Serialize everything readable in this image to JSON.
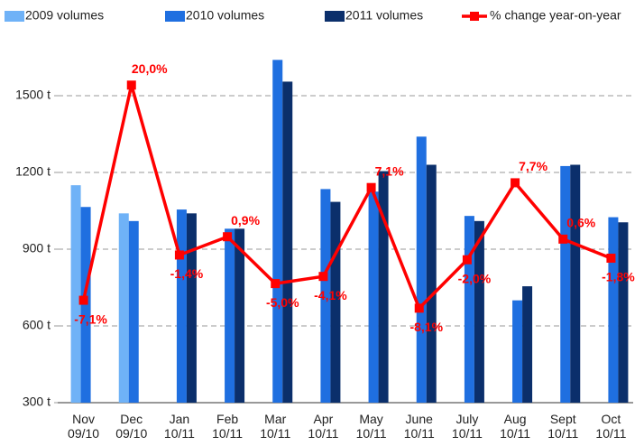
{
  "chart_data": {
    "type": "bar_line",
    "categories": [
      "Nov\n09/10",
      "Dec\n09/10",
      "Jan\n10/11",
      "Feb\n10/11",
      "Mar\n10/11",
      "Apr\n10/11",
      "May\n10/11",
      "June\n10/11",
      "July\n10/11",
      "Aug\n10/11",
      "Sept\n10/11",
      "Oct\n10/11"
    ],
    "series": [
      {
        "name": "2009 volumes",
        "color": "#6fb2f7",
        "values": [
          1150,
          1040,
          null,
          null,
          null,
          null,
          null,
          null,
          null,
          null,
          null,
          null
        ]
      },
      {
        "name": "2010 volumes",
        "color": "#1f6fe0",
        "values": [
          1065,
          1010,
          1055,
          980,
          1640,
          1135,
          1125,
          1340,
          1030,
          700,
          1225,
          1025
        ]
      },
      {
        "name": "2011 volumes",
        "color": "#0b2f6b",
        "values": [
          null,
          null,
          1040,
          980,
          1555,
          1085,
          1205,
          1230,
          1010,
          755,
          1230,
          1005
        ]
      },
      {
        "name": "% change year-on-year",
        "color": "#ff0000",
        "type": "line",
        "axis": "y2",
        "values": [
          -7.1,
          20.0,
          -1.4,
          0.9,
          -5.0,
          -4.1,
          7.1,
          -8.1,
          -2.0,
          7.7,
          0.6,
          -1.8
        ],
        "value_labels": [
          "-7,1%",
          "20,0%",
          "-1,4%",
          "0,9%",
          "-5,0%",
          "-4,1%",
          "7,1%",
          "-8,1%",
          "-2,0%",
          "7,7%",
          "0,6%",
          "-1,8%"
        ]
      }
    ],
    "ylim": [
      300,
      1650
    ],
    "yticks": [
      {
        "value": 300,
        "label": "300 t"
      },
      {
        "value": 600,
        "label": "600 t"
      },
      {
        "value": 900,
        "label": "900 t"
      },
      {
        "value": 1200,
        "label": "1200 t"
      },
      {
        "value": 1500,
        "label": "1500 t"
      }
    ],
    "y2lim": [
      -20,
      23.5
    ],
    "grid": true,
    "legend": "top"
  }
}
